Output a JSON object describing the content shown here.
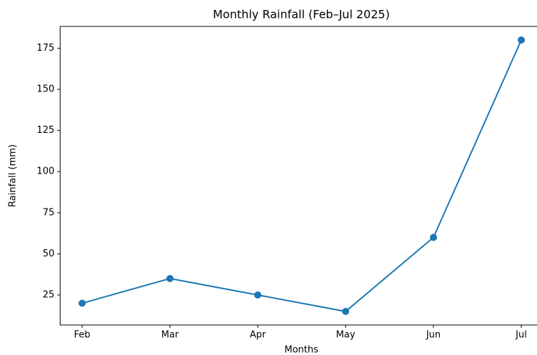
{
  "chart_data": {
    "type": "line",
    "title": "Monthly Rainfall (Feb–Jul 2025)",
    "x_label": "Months",
    "y_label": "Rainfall (mm)",
    "categories": [
      "Feb",
      "Mar",
      "Apr",
      "May",
      "Jun",
      "Jul"
    ],
    "series": [
      {
        "name": "Rainfall",
        "color": "#1f77b4",
        "values": [
          20,
          35,
          25,
          15,
          60,
          180
        ]
      }
    ],
    "ylim": [
      6.75,
      188.25
    ],
    "yticks": [
      25,
      50,
      75,
      100,
      125,
      150,
      175
    ],
    "grid": false
  }
}
